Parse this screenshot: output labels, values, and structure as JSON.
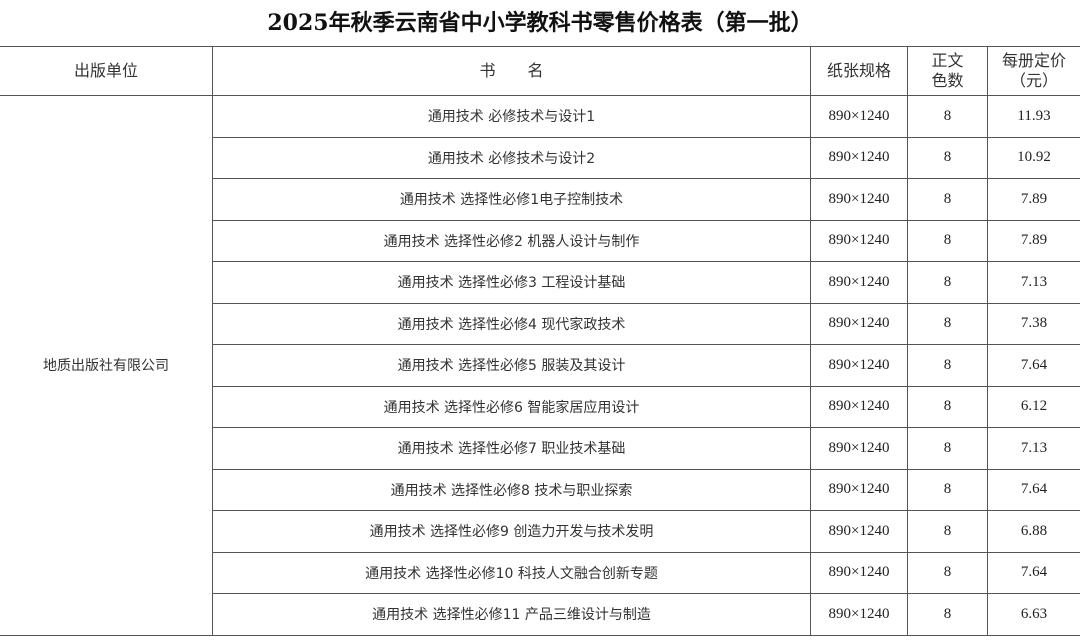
{
  "title": "2025年秋季云南省中小学教科书零售价格表（第一批）",
  "headers": {
    "publisher": "出版单位",
    "book_name": "书　　名",
    "paper_size": "纸张规格",
    "color_count": "正文色数",
    "price": "每册定价（元）"
  },
  "publisher": "地质出版社有限公司",
  "rows": [
    {
      "name": "通用技术 必修技术与设计1",
      "paper": "890×1240",
      "colors": "8",
      "price": "11.93"
    },
    {
      "name": "通用技术 必修技术与设计2",
      "paper": "890×1240",
      "colors": "8",
      "price": "10.92"
    },
    {
      "name": "通用技术 选择性必修1电子控制技术",
      "paper": "890×1240",
      "colors": "8",
      "price": "7.89"
    },
    {
      "name": "通用技术 选择性必修2 机器人设计与制作",
      "paper": "890×1240",
      "colors": "8",
      "price": "7.89"
    },
    {
      "name": "通用技术 选择性必修3 工程设计基础",
      "paper": "890×1240",
      "colors": "8",
      "price": "7.13"
    },
    {
      "name": "通用技术 选择性必修4 现代家政技术",
      "paper": "890×1240",
      "colors": "8",
      "price": "7.38"
    },
    {
      "name": "通用技术 选择性必修5 服装及其设计",
      "paper": "890×1240",
      "colors": "8",
      "price": "7.64"
    },
    {
      "name": "通用技术 选择性必修6 智能家居应用设计",
      "paper": "890×1240",
      "colors": "8",
      "price": "6.12"
    },
    {
      "name": "通用技术 选择性必修7 职业技术基础",
      "paper": "890×1240",
      "colors": "8",
      "price": "7.13"
    },
    {
      "name": "通用技术 选择性必修8 技术与职业探索",
      "paper": "890×1240",
      "colors": "8",
      "price": "7.64"
    },
    {
      "name": "通用技术 选择性必修9 创造力开发与技术发明",
      "paper": "890×1240",
      "colors": "8",
      "price": "6.88"
    },
    {
      "name": "通用技术 选择性必修10 科技人文融合创新专题",
      "paper": "890×1240",
      "colors": "8",
      "price": "7.64"
    },
    {
      "name": "通用技术 选择性必修11 产品三维设计与制造",
      "paper": "890×1240",
      "colors": "8",
      "price": "6.63"
    }
  ]
}
